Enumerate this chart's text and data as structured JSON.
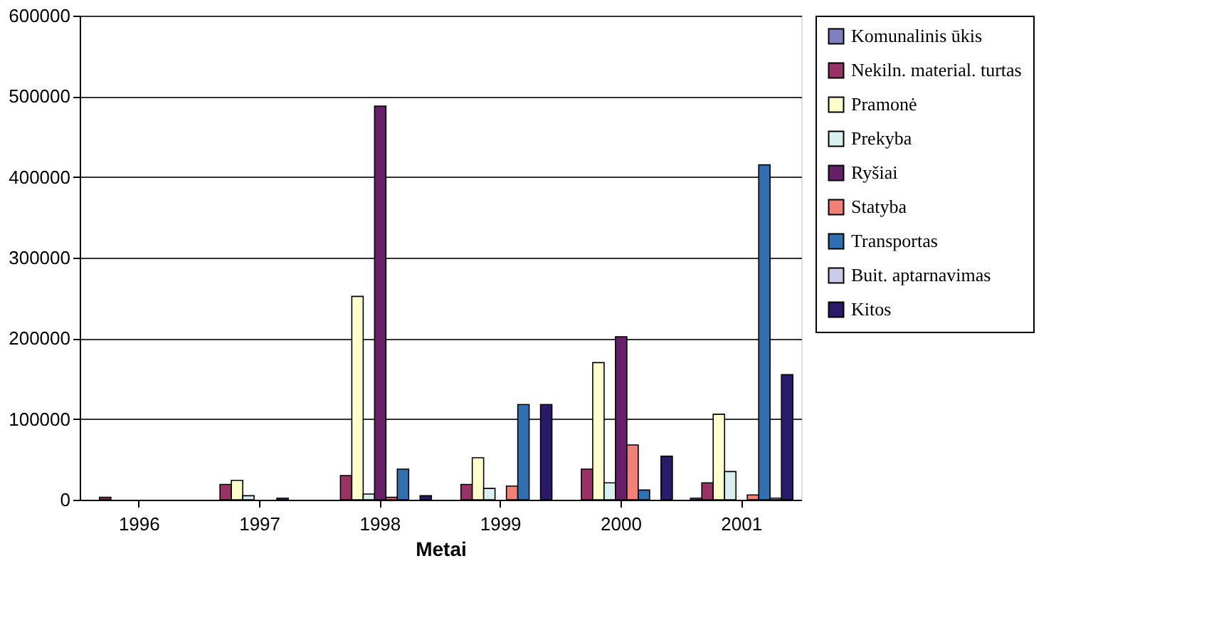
{
  "chart_data": {
    "type": "bar",
    "xlabel": "Metai",
    "categories": [
      "1996",
      "1997",
      "1998",
      "1999",
      "2000",
      "2001"
    ],
    "series": [
      {
        "name": "Komunalinis ūkis",
        "color": "#8080c0",
        "values": [
          null,
          null,
          null,
          null,
          null,
          2000
        ]
      },
      {
        "name": "Nekiln. material. turtas",
        "color": "#993366",
        "values": [
          3000,
          19000,
          30000,
          19000,
          38000,
          21000
        ]
      },
      {
        "name": "Pramonė",
        "color": "#ffffcc",
        "values": [
          null,
          24000,
          252000,
          52000,
          170000,
          106000
        ]
      },
      {
        "name": "Prekyba",
        "color": "#d8f0f0",
        "values": [
          null,
          5000,
          7000,
          14000,
          21000,
          35000
        ]
      },
      {
        "name": "Ryšiai",
        "color": "#66206a",
        "values": [
          null,
          null,
          488000,
          null,
          202000,
          null
        ]
      },
      {
        "name": "Statyba",
        "color": "#f08078",
        "values": [
          null,
          null,
          3000,
          17000,
          68000,
          6000
        ]
      },
      {
        "name": "Transportas",
        "color": "#3070b0",
        "values": [
          null,
          2000,
          38000,
          118000,
          12000,
          415000
        ]
      },
      {
        "name": "Buit. aptarnavimas",
        "color": "#c8cce8",
        "values": [
          null,
          null,
          null,
          null,
          null,
          2000
        ]
      },
      {
        "name": "Kitos",
        "color": "#2a1a6a",
        "values": [
          null,
          null,
          5000,
          118000,
          54000,
          155000
        ]
      }
    ],
    "ylim": [
      0,
      600000
    ],
    "yticks": [
      0,
      100000,
      200000,
      300000,
      400000,
      500000,
      600000
    ],
    "grid": "y",
    "legend": "right"
  }
}
